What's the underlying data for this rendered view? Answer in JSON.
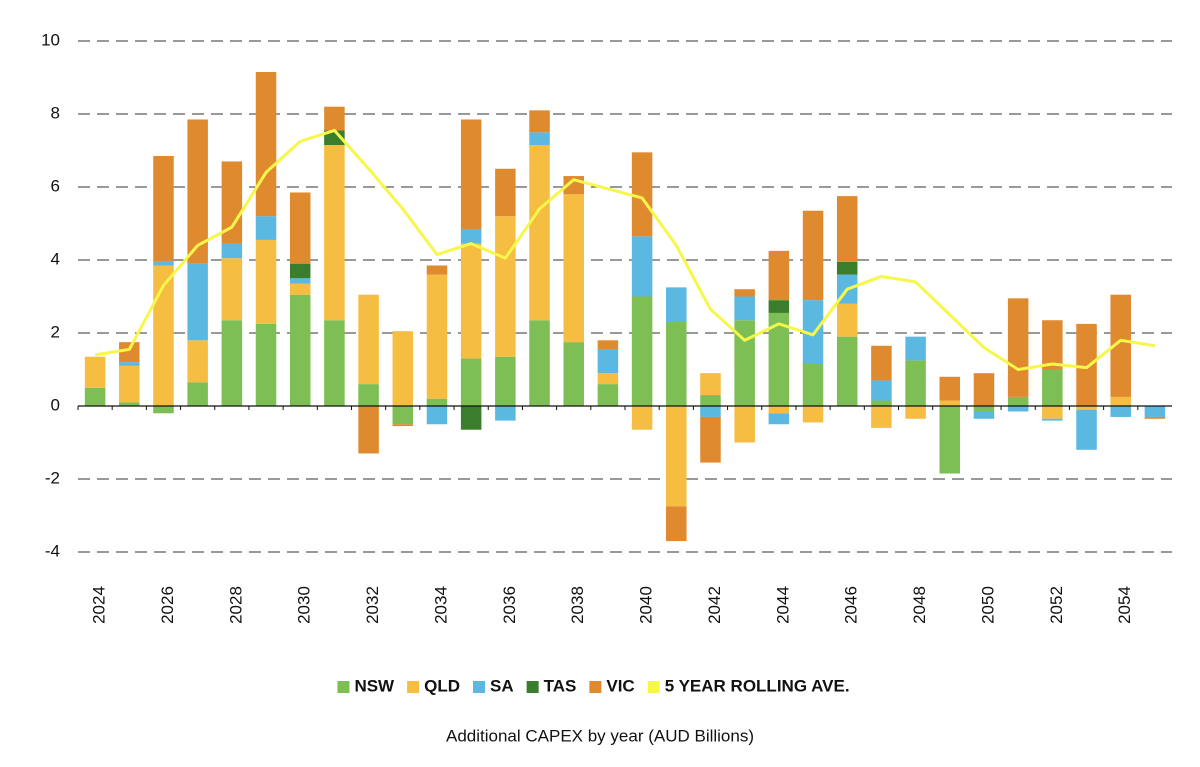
{
  "chart_data": {
    "type": "bar",
    "stacked": true,
    "caption": "Additional CAPEX by year (AUD Billions)",
    "categories": [
      "2024",
      null,
      "2026",
      null,
      "2028",
      null,
      "2030",
      null,
      "2032",
      null,
      "2034",
      null,
      "2036",
      null,
      "2038",
      null,
      "2040",
      null,
      "2042",
      null,
      "2044",
      null,
      "2046",
      null,
      "2048",
      null,
      "2050",
      null,
      "2052",
      null,
      "2054",
      null
    ],
    "series": [
      {
        "name": "NSW",
        "color": "#7dbf55",
        "values": [
          0.5,
          0.1,
          -0.2,
          0.65,
          2.35,
          2.25,
          3.05,
          2.35,
          0.6,
          -0.5,
          0.2,
          1.3,
          1.35,
          2.35,
          1.75,
          0.6,
          3.0,
          2.3,
          0.3,
          2.35,
          2.55,
          1.15,
          1.9,
          0.15,
          1.25,
          -1.85,
          -0.15,
          0.25,
          1.0,
          0,
          0,
          0
        ]
      },
      {
        "name": "QLD",
        "color": "#f5bd42",
        "values": [
          0.85,
          1.0,
          3.85,
          1.15,
          1.7,
          2.3,
          0.3,
          4.8,
          2.45,
          2.05,
          3.4,
          3.15,
          3.85,
          4.8,
          4.05,
          0.3,
          -0.65,
          -2.75,
          0.6,
          -1.0,
          -0.2,
          -0.45,
          0.9,
          -0.6,
          -0.35,
          0.15,
          0,
          0,
          -0.35,
          -0.1,
          0.25,
          0
        ]
      },
      {
        "name": "SA",
        "color": "#5bb8e0",
        "values": [
          0,
          0.1,
          0.1,
          2.1,
          0.4,
          0.65,
          0.15,
          0,
          0,
          0,
          -0.5,
          0.4,
          -0.4,
          0.35,
          0,
          0.65,
          1.65,
          0.95,
          -0.3,
          0.65,
          -0.3,
          1.75,
          0.8,
          0.55,
          0.65,
          0,
          -0.2,
          -0.15,
          -0.05,
          -1.1,
          -0.3,
          -0.3
        ]
      },
      {
        "name": "TAS",
        "color": "#3a7d2c",
        "values": [
          0,
          0,
          0,
          0,
          0,
          0,
          0.4,
          0.4,
          0,
          0,
          0,
          -0.65,
          0,
          0,
          0,
          0,
          0,
          0,
          0,
          0,
          0.35,
          0,
          0.35,
          0,
          0,
          0,
          0,
          0,
          0,
          0,
          0,
          0
        ]
      },
      {
        "name": "VIC",
        "color": "#e08a30",
        "values": [
          0,
          0.55,
          2.9,
          3.95,
          2.25,
          3.95,
          1.95,
          0.65,
          -1.3,
          -0.05,
          0.25,
          3.0,
          1.3,
          0.6,
          0.5,
          0.25,
          2.3,
          -0.95,
          -1.25,
          0.2,
          1.35,
          2.45,
          1.8,
          0.95,
          0,
          0.65,
          0.9,
          2.7,
          1.35,
          2.25,
          2.8,
          -0.05
        ]
      },
      {
        "name": "5 YEAR ROLLING AVE.",
        "type": "line",
        "color": "#f7f74a",
        "values": [
          1.4,
          1.55,
          3.3,
          4.4,
          4.9,
          6.4,
          7.25,
          7.55,
          6.5,
          5.4,
          4.15,
          4.45,
          4.05,
          5.4,
          6.2,
          5.95,
          5.7,
          4.4,
          2.65,
          1.8,
          2.25,
          1.95,
          3.2,
          3.55,
          3.4,
          2.5,
          1.6,
          1.0,
          1.15,
          1.05,
          1.8,
          1.65
        ]
      }
    ],
    "ylim": [
      -4,
      10
    ],
    "yticks": [
      -4,
      -2,
      0,
      2,
      4,
      6,
      8,
      10
    ],
    "grid": true,
    "legend": "bottom"
  }
}
